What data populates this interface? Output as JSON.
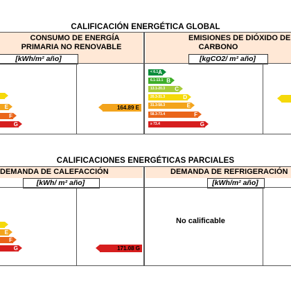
{
  "global": {
    "title": "CALIFICACIÓN ENERGÉTICA GLOBAL",
    "col1": {
      "header_line1": "CONSUMO DE ENERGÍA",
      "header_line2": "PRIMARIA NO RENOVABLE",
      "unit": "[kWh/m² año]",
      "bars": [
        {
          "letter": "D",
          "color": "#f5d90a"
        },
        {
          "letter": "E",
          "color": "#f3a41c"
        },
        {
          "letter": "F",
          "color": "#ea6519"
        },
        {
          "letter": "G",
          "color": "#d61e1e"
        }
      ],
      "result_label": "164.89 E",
      "result_color": "#f3a41c"
    },
    "col2": {
      "header_line1": "EMISIONES DE DIÓXIDO DE",
      "header_line2": "CARBONO",
      "unit": "[kgCO2/ m² año]",
      "bars": [
        {
          "label": "< 6.1",
          "letter": "A",
          "color": "#0a8c3a"
        },
        {
          "label": "6.1-13.1",
          "letter": "B",
          "color": "#3fae2a"
        },
        {
          "label": "13.1-20.3",
          "letter": "C",
          "color": "#a6cb3b"
        },
        {
          "label": "20.3-31.3",
          "letter": "D",
          "color": "#f5d90a"
        },
        {
          "label": "31.3-58.3",
          "letter": "E",
          "color": "#f3a41c"
        },
        {
          "label": "58.3-73.4",
          "letter": "F",
          "color": "#ea6519"
        },
        {
          "label": "≥ 73.4",
          "letter": "G",
          "color": "#d61e1e"
        }
      ]
    }
  },
  "partial": {
    "title": "CALIFICACIONES ENERGÉTICAS PARCIALES",
    "col1": {
      "header": "DEMANDA DE CALEFACCIÓN",
      "unit": "[kWh/ m² año]",
      "bars": [
        {
          "letter": "D",
          "color": "#f5d90a"
        },
        {
          "letter": "E",
          "color": "#f3a41c"
        },
        {
          "letter": "F",
          "color": "#ea6519"
        },
        {
          "letter": "G",
          "color": "#d61e1e"
        }
      ],
      "result_label": "171.08 G",
      "result_color": "#d61e1e"
    },
    "col2": {
      "header": "DEMANDA DE REFRIGERACIÓN",
      "unit": "[kWh/m² año]",
      "no_rating": "No calificable"
    }
  }
}
